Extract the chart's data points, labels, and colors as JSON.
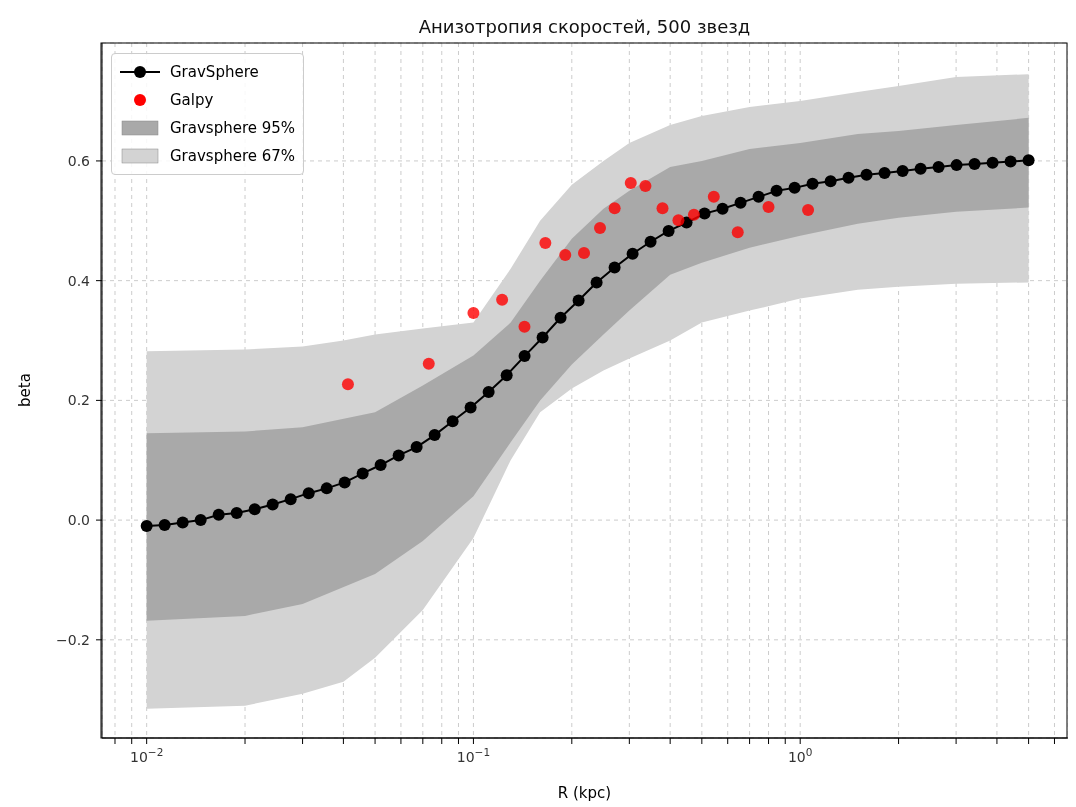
{
  "chart_data": {
    "type": "line",
    "title": "Анизотропия скоростей, 500 звезд",
    "xlabel": "R (kpc)",
    "ylabel": "beta",
    "log": "x",
    "grid": true,
    "legend": "top left",
    "xlim": [
      0.0073,
      6.6
    ],
    "xticks": [
      {
        "value": 0.008,
        "label": null
      },
      {
        "value": 0.009,
        "label": null
      },
      {
        "value": 0.01,
        "label": "10$^{−2}$"
      },
      {
        "value": 0.02,
        "label": null
      },
      {
        "value": 0.03,
        "label": null
      },
      {
        "value": 0.04,
        "label": null
      },
      {
        "value": 0.05,
        "label": null
      },
      {
        "value": 0.06,
        "label": null
      },
      {
        "value": 0.07,
        "label": null
      },
      {
        "value": 0.08,
        "label": null
      },
      {
        "value": 0.09,
        "label": null
      },
      {
        "value": 0.1,
        "label": "10$^{−1}$"
      },
      {
        "value": 0.2,
        "label": null
      },
      {
        "value": 0.3,
        "label": null
      },
      {
        "value": 0.4,
        "label": null
      },
      {
        "value": 0.5,
        "label": null
      },
      {
        "value": 0.6,
        "label": null
      },
      {
        "value": 0.7,
        "label": null
      },
      {
        "value": 0.8,
        "label": null
      },
      {
        "value": 0.9,
        "label": null
      },
      {
        "value": 1,
        "label": "10$^{0}$"
      },
      {
        "value": 2,
        "label": null
      },
      {
        "value": 3,
        "label": null
      },
      {
        "value": 4,
        "label": null
      },
      {
        "value": 5,
        "label": null
      },
      {
        "value": 6,
        "label": null
      }
    ],
    "ylim": [
      -0.364,
      0.797
    ],
    "yticks": [
      {
        "value": -0.2,
        "label": "−0.2"
      },
      {
        "value": 0,
        "label": "0.0"
      },
      {
        "value": 0.2,
        "label": "0.2"
      },
      {
        "value": 0.4,
        "label": "0.4"
      },
      {
        "value": 0.6,
        "label": "0.6"
      }
    ],
    "series": [
      {
        "type": "line",
        "name": "GravSphere",
        "color": "#000000",
        "marker": "circle",
        "line_style": "solid",
        "x": [
          0.01,
          0.01135,
          0.01289,
          0.01463,
          0.01661,
          0.01886,
          0.02141,
          0.0243,
          0.02759,
          0.03132,
          0.03556,
          0.04036,
          0.04582,
          0.052,
          0.05904,
          0.06702,
          0.07608,
          0.08637,
          0.09804,
          0.1113,
          0.1264,
          0.1434,
          0.1628,
          0.1848,
          0.2098,
          0.2382,
          0.2704,
          0.307,
          0.3484,
          0.3956,
          0.449,
          0.5097,
          0.5786,
          0.6569,
          0.7457,
          0.8465,
          0.9613,
          1.091,
          1.239,
          1.406,
          1.596,
          1.812,
          2.058,
          2.336,
          2.651,
          3.01,
          3.417,
          3.879,
          4.404,
          5
        ],
        "values": [
          -0.01,
          -0.008,
          -0.004,
          0.0,
          0.009,
          0.012,
          0.018,
          0.026,
          0.035,
          0.045,
          0.053,
          0.063,
          0.078,
          0.092,
          0.108,
          0.122,
          0.142,
          0.165,
          0.188,
          0.214,
          0.242,
          0.274,
          0.305,
          0.338,
          0.367,
          0.397,
          0.422,
          0.445,
          0.465,
          0.483,
          0.497,
          0.512,
          0.52,
          0.53,
          0.54,
          0.55,
          0.555,
          0.562,
          0.566,
          0.572,
          0.577,
          0.58,
          0.583,
          0.587,
          0.59,
          0.593,
          0.595,
          0.597,
          0.599,
          0.601
        ]
      },
      {
        "type": "scatter",
        "name": "Galpy",
        "color": "#ff0000",
        "marker": "circle",
        "x": [
          0.0413,
          0.073,
          0.1,
          0.1224,
          0.1433,
          0.166,
          0.191,
          0.218,
          0.244,
          0.2705,
          0.303,
          0.336,
          0.379,
          0.424,
          0.473,
          0.544,
          0.644,
          0.8,
          1.057
        ],
        "values": [
          0.227,
          0.261,
          0.346,
          0.368,
          0.323,
          0.463,
          0.443,
          0.446,
          0.488,
          0.521,
          0.563,
          0.558,
          0.521,
          0.501,
          0.51,
          0.54,
          0.481,
          0.523,
          0.518
        ]
      },
      {
        "name": "Gravsphere 95%",
        "color": "#a9a9a9",
        "x": [
          0.01,
          0.02,
          0.03,
          0.05,
          0.07,
          0.1,
          0.13,
          0.16,
          0.2,
          0.25,
          0.3,
          0.4,
          0.5,
          0.7,
          1,
          1.5,
          2,
          3,
          5
        ],
        "values": [
          null,
          null,
          null,
          null,
          null,
          null,
          null,
          null,
          null,
          null,
          null,
          null,
          null,
          null,
          null,
          null,
          null,
          null,
          null
        ],
        "lower": [
          -0.168,
          -0.16,
          -0.14,
          -0.09,
          -0.035,
          0.04,
          0.13,
          0.2,
          0.26,
          0.31,
          0.35,
          0.41,
          0.43,
          0.455,
          0.475,
          0.495,
          0.505,
          0.515,
          0.522
        ],
        "upper": [
          0.145,
          0.148,
          0.155,
          0.18,
          0.225,
          0.275,
          0.33,
          0.4,
          0.47,
          0.52,
          0.55,
          0.59,
          0.6,
          0.62,
          0.63,
          0.645,
          0.65,
          0.66,
          0.672
        ]
      },
      {
        "name": "Gravsphere 67%",
        "color": "#d3d3d3",
        "x": [
          0.01,
          0.02,
          0.03,
          0.04,
          0.05,
          0.07,
          0.1,
          0.13,
          0.16,
          0.2,
          0.25,
          0.3,
          0.4,
          0.5,
          0.7,
          1,
          1.5,
          2,
          3,
          5
        ],
        "values": [
          null,
          null,
          null,
          null,
          null,
          null,
          null,
          null,
          null,
          null,
          null,
          null,
          null,
          null,
          null,
          null,
          null,
          null,
          null,
          null
        ],
        "lower": [
          -0.315,
          -0.31,
          -0.29,
          -0.27,
          -0.23,
          -0.15,
          -0.03,
          0.1,
          0.18,
          0.22,
          0.25,
          0.27,
          0.3,
          0.33,
          0.35,
          0.37,
          0.385,
          0.39,
          0.395,
          0.397
        ],
        "upper": [
          0.282,
          0.285,
          0.29,
          0.3,
          0.31,
          0.32,
          0.33,
          0.42,
          0.5,
          0.56,
          0.6,
          0.63,
          0.66,
          0.675,
          0.69,
          0.7,
          0.715,
          0.725,
          0.74,
          0.745
        ]
      }
    ]
  }
}
